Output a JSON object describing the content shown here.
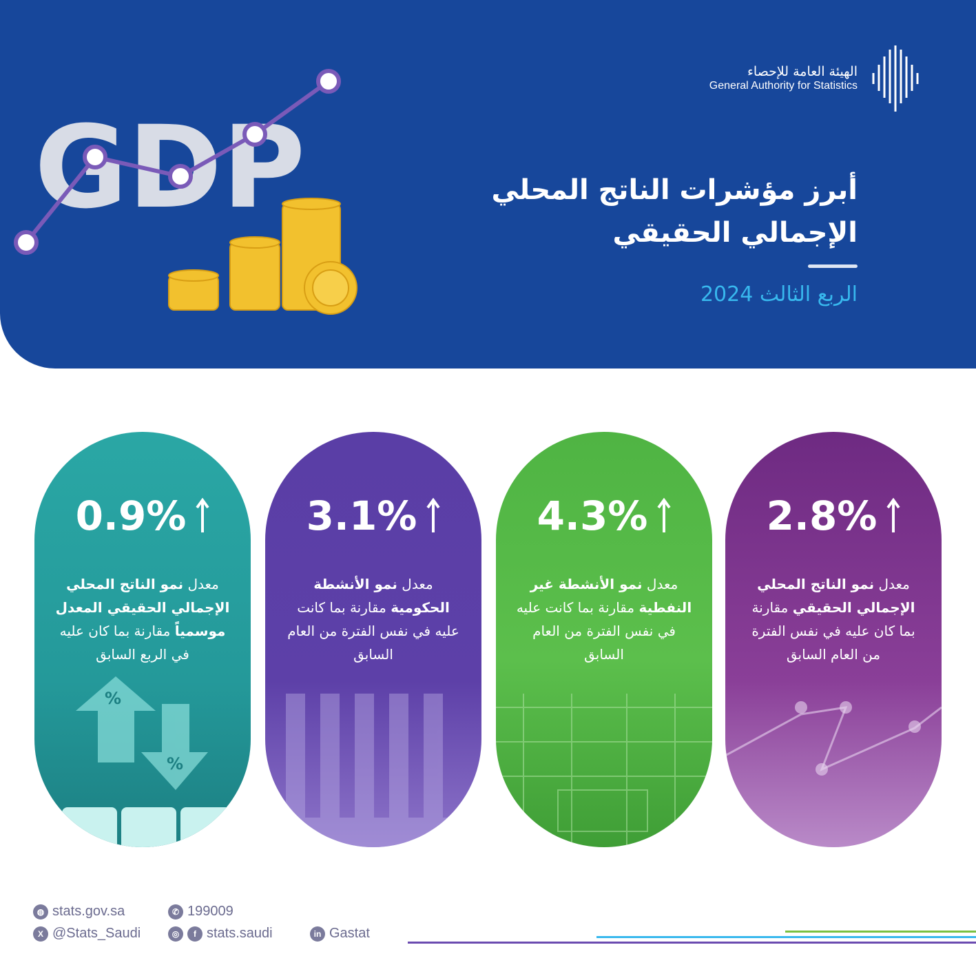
{
  "header": {
    "logo_ar": "الهيئة العامة للإحصاء",
    "logo_en": "General Authority for Statistics",
    "title_line1": "أبرز مؤشرات الناتج المحلي",
    "title_line2": "الإجمالي الحقيقي",
    "subtitle": "الربع الثالث 2024",
    "illustration_text": "GDP"
  },
  "cards": [
    {
      "value": "2.8%",
      "direction": "up",
      "color": "#7a2e86",
      "desc_pre": "معدل ",
      "desc_bold": "نمو الناتج المحلي الإجمالي الحقيقي",
      "desc_post": " مقارنة بما كان عليه في نفس الفترة من العام السابق"
    },
    {
      "value": "4.3%",
      "direction": "up",
      "color": "#56b947",
      "desc_pre": "معدل ",
      "desc_bold": "نمو الأنشطة غير النفطية",
      "desc_post": " مقارنة بما كانت عليه في نفس الفترة من العام السابق"
    },
    {
      "value": "3.1%",
      "direction": "up",
      "color": "#5a3ea6",
      "desc_pre": "معدل ",
      "desc_bold": "نمو الأنشطة الحكومية",
      "desc_post": " مقارنة بما كانت عليه في نفس الفترة من العام السابق"
    },
    {
      "value": "0.9%",
      "direction": "up",
      "color": "#2aa7a5",
      "desc_pre": "معدل ",
      "desc_bold": "نمو الناتج المحلي الإجمالي الحقيقي المعدل موسمياً",
      "desc_post": " مقارنة بما كان عليه في الربع السابق"
    }
  ],
  "footer": {
    "website": "stats.gov.sa",
    "phone": "199009",
    "twitter": "@Stats_Saudi",
    "insta_fb": "stats.saudi",
    "linkedin": "Gastat"
  },
  "colors": {
    "header_bg": "#17479b",
    "subtitle": "#38b8ee",
    "line_purple": "#6b4bb0"
  }
}
